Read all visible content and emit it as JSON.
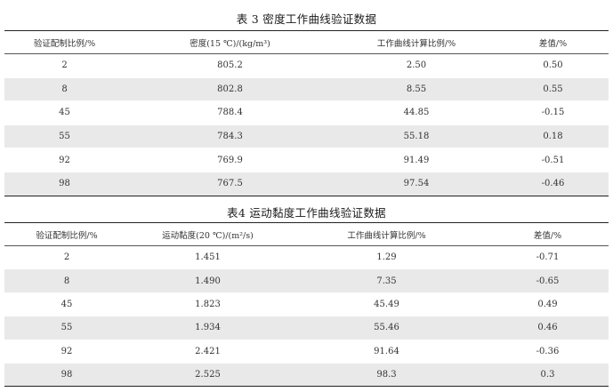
{
  "table3": {
    "caption": "表 3 密度工作曲线验证数据",
    "headers": [
      "验证配制比例/%",
      "密度(15 ℃)/(kg/m³)",
      "工作曲线计算比例/%",
      "差值/%"
    ],
    "rows": [
      [
        "2",
        "805.2",
        "2.50",
        "0.50"
      ],
      [
        "8",
        "802.8",
        "8.55",
        "0.55"
      ],
      [
        "45",
        "788.4",
        "44.85",
        "-0.15"
      ],
      [
        "55",
        "784.3",
        "55.18",
        "0.18"
      ],
      [
        "92",
        "769.9",
        "91.49",
        "-0.51"
      ],
      [
        "98",
        "767.5",
        "97.54",
        "-0.46"
      ]
    ]
  },
  "table4": {
    "caption": "表4 运动黏度工作曲线验证数据",
    "headers": [
      "验证配制比例/%",
      "运动黏度(20 ℃)/(m²/s)",
      "工作曲线计算比例/%",
      "差值/%"
    ],
    "rows": [
      [
        "2",
        "1.451",
        "1.29",
        "-0.71"
      ],
      [
        "8",
        "1.490",
        "7.35",
        "-0.65"
      ],
      [
        "45",
        "1.823",
        "45.49",
        "0.49"
      ],
      [
        "55",
        "1.934",
        "55.46",
        "0.46"
      ],
      [
        "92",
        "2.421",
        "91.64",
        "-0.36"
      ],
      [
        "98",
        "2.525",
        "98.3",
        "0.3"
      ]
    ]
  }
}
